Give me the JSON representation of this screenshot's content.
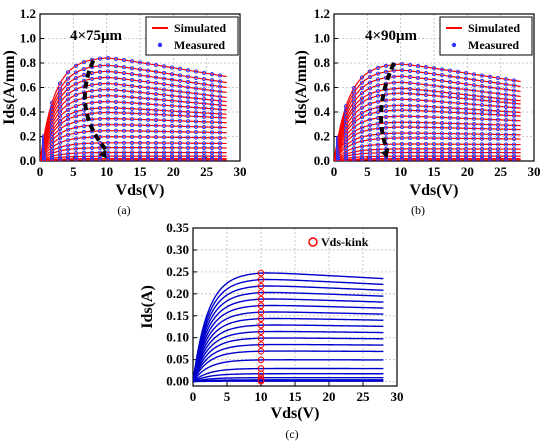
{
  "chart_data": [
    {
      "type": "line",
      "caption": "(a)",
      "annotation": "4×75μm",
      "xlabel": "Vds(V)",
      "ylabel": "Ids(A/mm)",
      "xlim": [
        0,
        30
      ],
      "ylim": [
        0,
        1.2
      ],
      "xticks": [
        "0",
        "5",
        "10",
        "15",
        "20",
        "25",
        "30"
      ],
      "yticks": [
        "0.0",
        "0.2",
        "0.4",
        "0.6",
        "0.8",
        "1.0",
        "1.2"
      ],
      "grid": true,
      "legend": {
        "position": "top-right",
        "entries": [
          "Simulated",
          "Measured"
        ]
      },
      "series": [
        {
          "name": "Simulated",
          "color": "#ff0000",
          "style": "line"
        },
        {
          "name": "Measured",
          "color": "#3333ff",
          "style": "circle"
        }
      ],
      "curve_peaks": [
        0.85,
        0.79,
        0.74,
        0.69,
        0.64,
        0.59,
        0.54,
        0.49,
        0.44,
        0.4,
        0.35,
        0.3,
        0.25,
        0.2,
        0.15,
        0.11,
        0.07,
        0.04,
        0.02,
        0.01
      ],
      "vd_max": 28,
      "knee_v": 10,
      "arrow": {
        "from": [
          8,
          0.82
        ],
        "to": [
          10,
          0.02
        ]
      }
    },
    {
      "type": "line",
      "caption": "(b)",
      "annotation": "4×90μm",
      "xlabel": "Vds(V)",
      "ylabel": "Ids(A/mm)",
      "xlim": [
        0,
        30
      ],
      "ylim": [
        0,
        1.2
      ],
      "xticks": [
        "0",
        "5",
        "10",
        "15",
        "20",
        "25",
        "30"
      ],
      "yticks": [
        "0.0",
        "0.2",
        "0.4",
        "0.6",
        "0.8",
        "1.0",
        "1.2"
      ],
      "grid": true,
      "legend": {
        "position": "top-right",
        "entries": [
          "Simulated",
          "Measured"
        ]
      },
      "series": [
        {
          "name": "Simulated",
          "color": "#ff0000",
          "style": "line"
        },
        {
          "name": "Measured",
          "color": "#3333ff",
          "style": "circle"
        }
      ],
      "curve_peaks": [
        0.8,
        0.75,
        0.7,
        0.65,
        0.6,
        0.56,
        0.51,
        0.46,
        0.42,
        0.37,
        0.32,
        0.28,
        0.23,
        0.19,
        0.14,
        0.1,
        0.07,
        0.04,
        0.02,
        0.01
      ],
      "vd_max": 28,
      "knee_v": 10,
      "arrow": {
        "from": [
          9,
          0.8
        ],
        "to": [
          8,
          0.02
        ]
      }
    },
    {
      "type": "line",
      "caption": "(c)",
      "xlabel": "Vds(V)",
      "ylabel": "Ids(A)",
      "xlim": [
        0,
        30
      ],
      "ylim": [
        -0.01,
        0.35
      ],
      "xticks": [
        "0",
        "5",
        "10",
        "15",
        "20",
        "25",
        "30"
      ],
      "yticks": [
        "0.00",
        "0.05",
        "0.10",
        "0.15",
        "0.20",
        "0.25",
        "0.30",
        "0.35"
      ],
      "grid": true,
      "legend": {
        "position": "top-right",
        "entries": [
          "Vds-kink"
        ]
      },
      "series": [
        {
          "name": "Vds-kink",
          "color": "#ff0000",
          "style": "circle-open"
        }
      ],
      "curve_color": "#0000cc",
      "curve_peaks": [
        0.25,
        0.235,
        0.22,
        0.205,
        0.19,
        0.175,
        0.16,
        0.145,
        0.13,
        0.115,
        0.1,
        0.085,
        0.07,
        0.05,
        0.03,
        0.018,
        0.009,
        0.004,
        0.001
      ],
      "vd_max": 28,
      "kink_v": 10
    }
  ]
}
